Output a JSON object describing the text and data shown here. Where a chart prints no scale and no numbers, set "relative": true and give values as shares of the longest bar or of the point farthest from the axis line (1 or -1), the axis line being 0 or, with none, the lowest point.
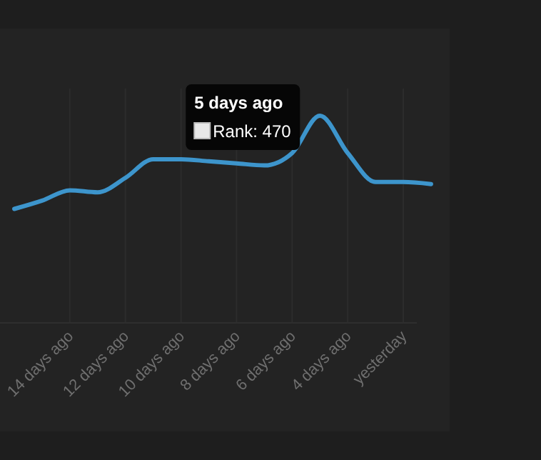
{
  "chart_data": {
    "type": "line",
    "relative": true,
    "grid": "x",
    "marker": "none",
    "line_style": "solid",
    "categories": [
      null,
      null,
      "14 days ago",
      null,
      "12 days ago",
      null,
      "10 days ago",
      null,
      "8 days ago",
      null,
      "6 days ago",
      null,
      "4 days ago",
      null,
      "yesterday",
      null
    ],
    "series": [
      {
        "color": "#3d95cc",
        "values": [
          0.55,
          0.59,
          0.64,
          0.63,
          0.7,
          0.79,
          0.79,
          0.78,
          0.77,
          0.76,
          0.82,
          1,
          0.82,
          0.68,
          0.68,
          0.67
        ]
      }
    ],
    "annotations": [
      "5 days ago",
      "Rank: 470"
    ]
  }
}
